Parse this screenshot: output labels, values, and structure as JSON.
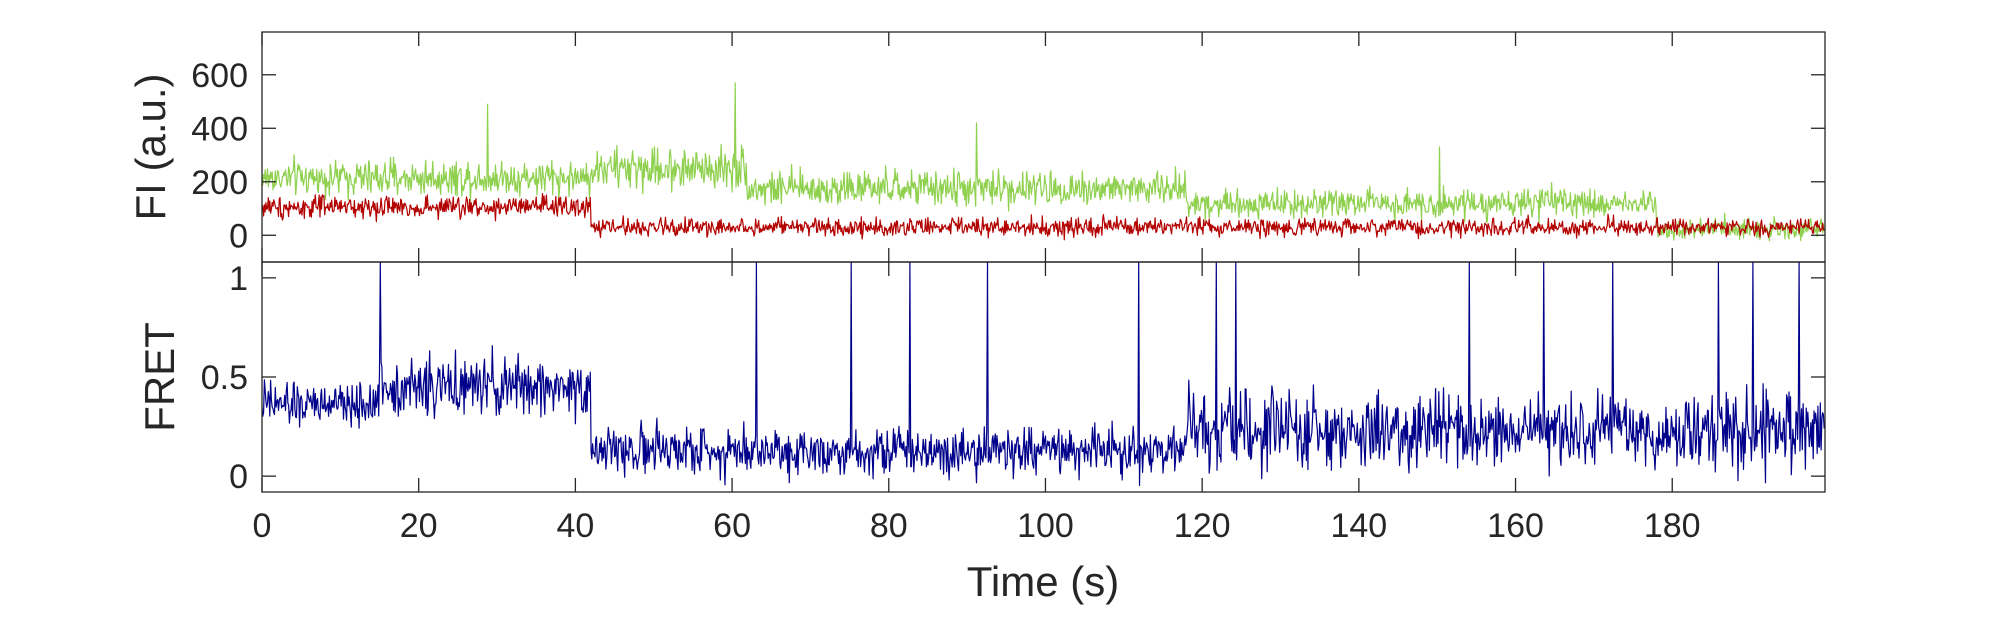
{
  "chart_data": [
    {
      "type": "line",
      "ylabel": "FI (a.u.)",
      "xlabel": "",
      "xlim": [
        0,
        199.5
      ],
      "ylim": [
        -100,
        760
      ],
      "yticks": [
        0,
        200,
        400,
        600
      ],
      "ytick_labels": [
        "0",
        "200",
        "400",
        "600"
      ],
      "grid": false,
      "legend": "none",
      "series": [
        {
          "color": "#8fd14f",
          "sampling_interval_s": 0.1,
          "segments": [
            {
              "t_start": 0,
              "t_end": 42,
              "mean": 215,
              "noise": 55
            },
            {
              "t_start": 42,
              "t_end": 62,
              "mean": 250,
              "noise": 65
            },
            {
              "t_start": 62,
              "t_end": 118,
              "mean": 175,
              "noise": 55
            },
            {
              "t_start": 118,
              "t_end": 178,
              "mean": 120,
              "noise": 45
            },
            {
              "t_start": 178,
              "t_end": 199.5,
              "mean": 25,
              "noise": 35
            }
          ],
          "spikes": [
            {
              "t": 28.8,
              "value": 490
            },
            {
              "t": 60.4,
              "value": 570
            },
            {
              "t": 91.2,
              "value": 420
            },
            {
              "t": 150.3,
              "value": 330
            }
          ]
        },
        {
          "color": "#b30000",
          "sampling_interval_s": 0.1,
          "segments": [
            {
              "t_start": 0,
              "t_end": 42,
              "mean": 105,
              "noise": 35
            },
            {
              "t_start": 42,
              "t_end": 199.5,
              "mean": 30,
              "noise": 28
            }
          ],
          "spikes": []
        }
      ]
    },
    {
      "type": "line",
      "ylabel": "FRET",
      "xlabel": "Time (s)",
      "xlim": [
        0,
        199.5
      ],
      "ylim": [
        -0.08,
        1.08
      ],
      "xticks": [
        0,
        20,
        40,
        60,
        80,
        100,
        120,
        140,
        160,
        180
      ],
      "xtick_labels": [
        "0",
        "20",
        "40",
        "60",
        "80",
        "100",
        "120",
        "140",
        "160",
        "180"
      ],
      "yticks": [
        0,
        0.5,
        1
      ],
      "ytick_labels": [
        "0",
        "0.5",
        "1"
      ],
      "grid": false,
      "legend": "none",
      "series": [
        {
          "color": "#00008b",
          "sampling_interval_s": 0.1,
          "segments": [
            {
              "t_start": 0,
              "t_end": 15,
              "mean": 0.36,
              "noise": 0.09
            },
            {
              "t_start": 15,
              "t_end": 42,
              "mean": 0.45,
              "noise": 0.12
            },
            {
              "t_start": 42,
              "t_end": 118,
              "mean": 0.13,
              "noise": 0.1
            },
            {
              "t_start": 118,
              "t_end": 199.5,
              "mean": 0.22,
              "noise": 0.16
            }
          ],
          "spikes": [
            {
              "t": 15.1,
              "value": 1.08
            },
            {
              "t": 63.1,
              "value": 1.08
            },
            {
              "t": 75.2,
              "value": 1.08
            },
            {
              "t": 82.7,
              "value": 1.08
            },
            {
              "t": 92.6,
              "value": 1.08
            },
            {
              "t": 111.9,
              "value": 1.08
            },
            {
              "t": 121.8,
              "value": 1.08
            },
            {
              "t": 124.3,
              "value": 1.08
            },
            {
              "t": 154.1,
              "value": 1.08
            },
            {
              "t": 163.6,
              "value": 1.08
            },
            {
              "t": 172.4,
              "value": 1.08
            },
            {
              "t": 185.9,
              "value": 1.08
            },
            {
              "t": 190.3,
              "value": 1.08
            },
            {
              "t": 196.2,
              "value": 1.08
            }
          ]
        }
      ]
    }
  ]
}
